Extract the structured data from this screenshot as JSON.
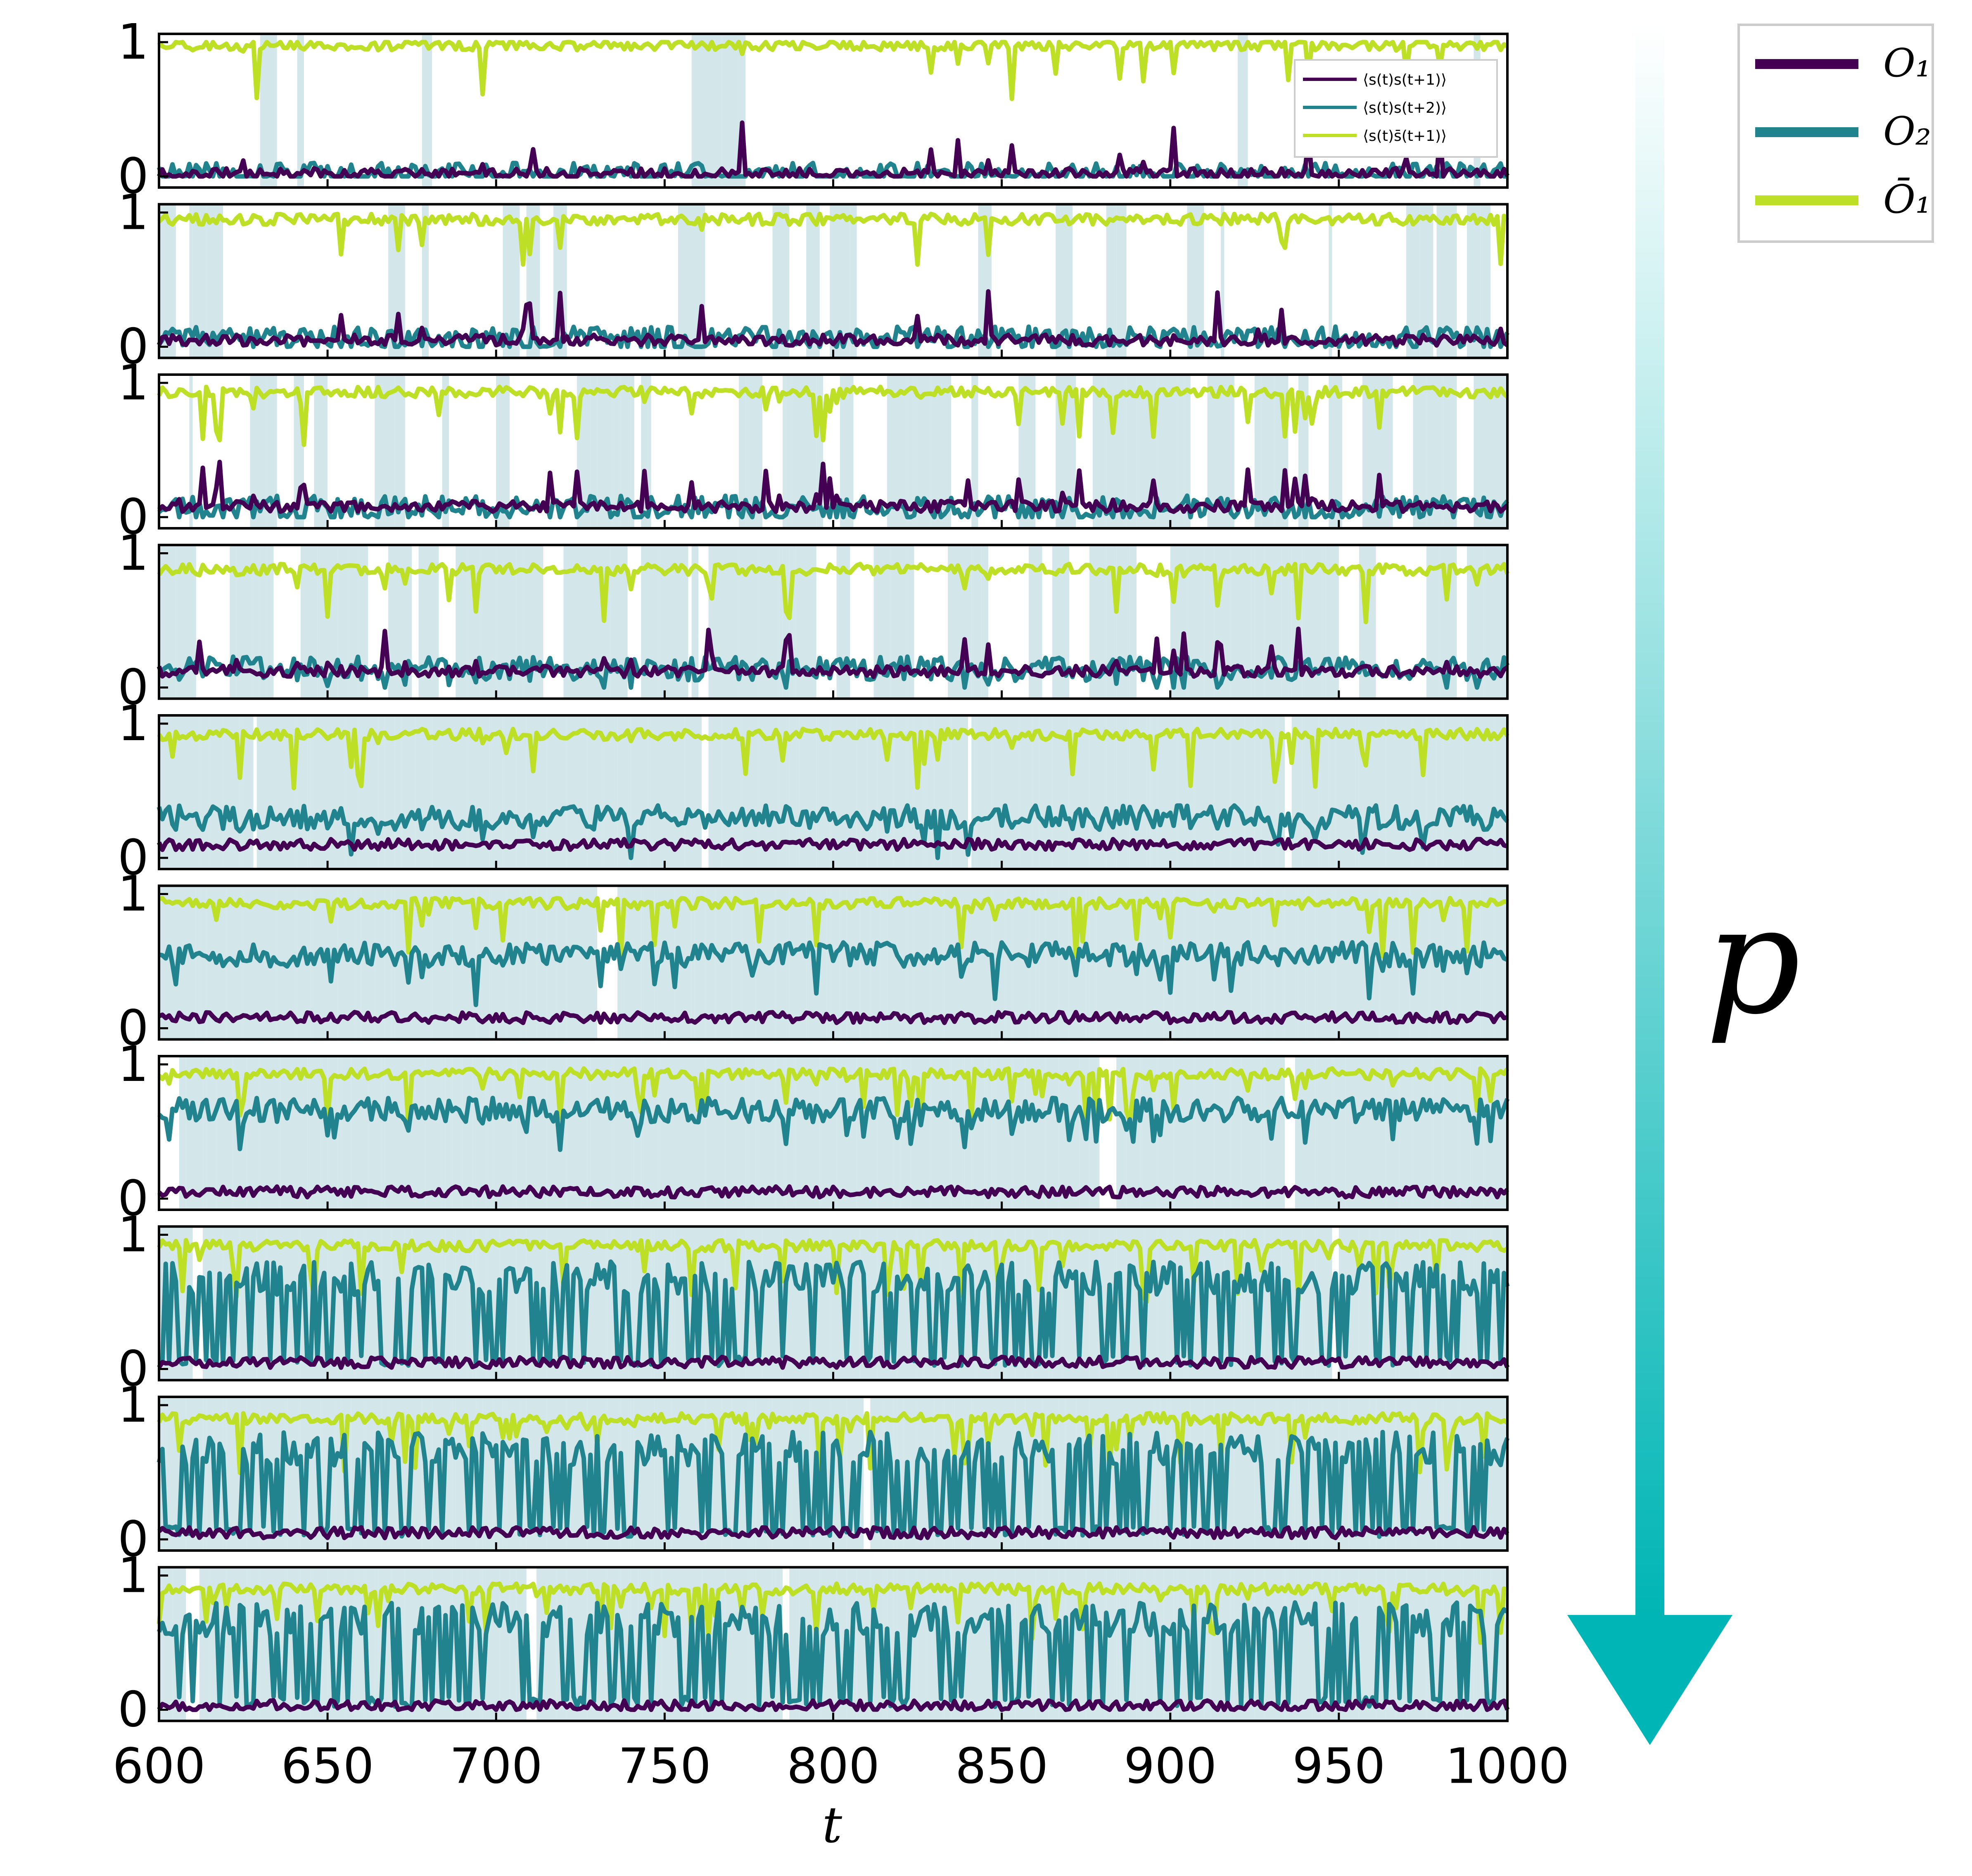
{
  "chart_data": {
    "type": "line",
    "panel_count": 10,
    "x_range": [
      600,
      1000
    ],
    "x_ticks": [
      600,
      650,
      700,
      750,
      800,
      850,
      900,
      950,
      1000
    ],
    "xlabel": "t",
    "y_ticks": [
      0,
      1
    ],
    "ylim": [
      0,
      1
    ],
    "grid": false,
    "shading": "light blue vertical bands",
    "inner_legend": {
      "entries": [
        "⟨s(t)s(t+1)⟩",
        "⟨s(t)s(t+2)⟩",
        "⟨s(t)s̄(t+1)⟩"
      ],
      "placement": "top-right of first panel"
    },
    "outer_legend": {
      "entries": [
        {
          "label": "O₁",
          "color": "#440154"
        },
        {
          "label": "O₂",
          "color": "#21838e"
        },
        {
          "label": "Ō₁",
          "color": "#bddf26"
        }
      ],
      "placement": "top-right outside"
    },
    "arrow_label": "p",
    "series_colors": {
      "O1": "#440154",
      "O2": "#21838e",
      "O1bar": "#bddf26",
      "shade": "#d3e6ea"
    },
    "panel_levels": [
      {
        "panel": 1,
        "O1_mean": 0.02,
        "O2_mean": 0.01,
        "O1bar_mean": 0.98
      },
      {
        "panel": 2,
        "O1_mean": 0.05,
        "O2_mean": 0.06,
        "O1bar_mean": 0.95
      },
      {
        "panel": 3,
        "O1_mean": 0.08,
        "O2_mean": 0.07,
        "O1bar_mean": 0.93
      },
      {
        "panel": 4,
        "O1_mean": 0.12,
        "O2_mean": 0.14,
        "O1bar_mean": 0.88
      },
      {
        "panel": 5,
        "O1_mean": 0.1,
        "O2_mean": 0.3,
        "O1bar_mean": 0.92
      },
      {
        "panel": 6,
        "O1_mean": 0.08,
        "O2_mean": 0.55,
        "O1bar_mean": 0.93
      },
      {
        "panel": 7,
        "O1_mean": 0.05,
        "O2_mean": 0.66,
        "O1bar_mean": 0.93
      },
      {
        "panel": 8,
        "O1_mean": 0.05,
        "O2_mean": 0.45,
        "O1bar_mean": 0.92
      },
      {
        "panel": 9,
        "O1_mean": 0.05,
        "O2_mean": 0.4,
        "O1bar_mean": 0.9
      },
      {
        "panel": 10,
        "O1_mean": 0.03,
        "O2_mean": 0.45,
        "O1bar_mean": 0.9
      }
    ]
  }
}
